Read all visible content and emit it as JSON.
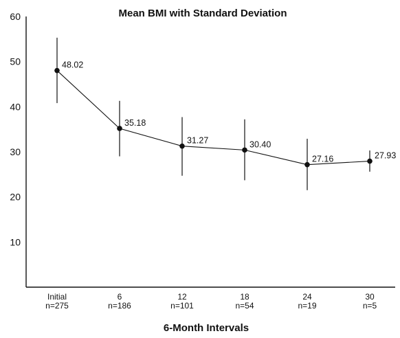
{
  "chart_data": {
    "type": "line",
    "title": "Mean BMI with Standard Deviation",
    "xlabel": "6-Month Intervals",
    "ylabel": "",
    "ylim": [
      0,
      60
    ],
    "yticks": [
      10,
      20,
      30,
      40,
      50,
      60
    ],
    "grid": false,
    "categories": [
      {
        "label": "Initial",
        "n": "n=275"
      },
      {
        "label": "6",
        "n": "n=186"
      },
      {
        "label": "12",
        "n": "n=101"
      },
      {
        "label": "18",
        "n": "n=54"
      },
      {
        "label": "24",
        "n": "n=19"
      },
      {
        "label": "30",
        "n": "n=5"
      }
    ],
    "series": [
      {
        "values": [
          48.02,
          35.18,
          31.27,
          30.4,
          27.16,
          27.93
        ],
        "value_labels": [
          "48.02",
          "35.18",
          "31.27",
          "30.40",
          "27.16",
          "27.93"
        ],
        "err_high": [
          55.3,
          41.3,
          37.7,
          37.2,
          32.9,
          30.3
        ],
        "err_low": [
          40.8,
          29.0,
          24.7,
          23.7,
          21.5,
          25.6
        ]
      }
    ]
  }
}
